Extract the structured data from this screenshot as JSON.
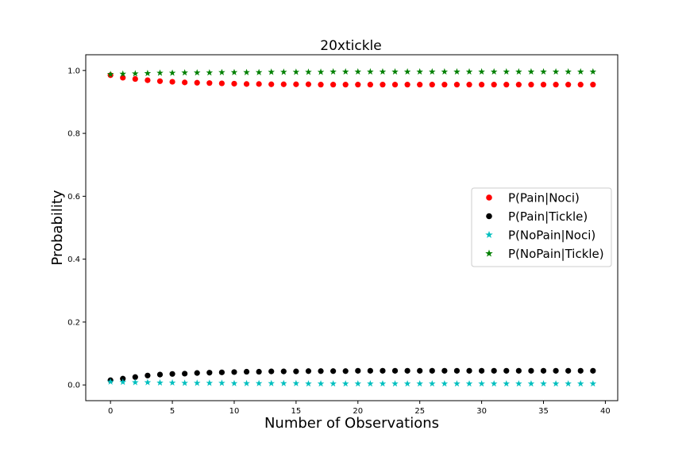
{
  "chart_data": {
    "type": "scatter",
    "title": "20xtickle",
    "xlabel": "Number of Observations",
    "ylabel": "Probability",
    "xlim": [
      -2,
      41
    ],
    "ylim": [
      -0.05,
      1.05
    ],
    "xticks": [
      0,
      5,
      10,
      15,
      20,
      25,
      30,
      35,
      40
    ],
    "yticks": [
      0.0,
      0.2,
      0.4,
      0.6,
      0.8,
      1.0
    ],
    "xtick_labels": [
      "0",
      "5",
      "10",
      "15",
      "20",
      "25",
      "30",
      "35",
      "40"
    ],
    "ytick_labels": [
      "0.0",
      "0.2",
      "0.4",
      "0.6",
      "0.8",
      "1.0"
    ],
    "legend_position": "center-right",
    "grid": false,
    "x": [
      0,
      1,
      2,
      3,
      4,
      5,
      6,
      7,
      8,
      9,
      10,
      11,
      12,
      13,
      14,
      15,
      16,
      17,
      18,
      19,
      20,
      21,
      22,
      23,
      24,
      25,
      26,
      27,
      28,
      29,
      30,
      31,
      32,
      33,
      34,
      35,
      36,
      37,
      38,
      39
    ],
    "series": [
      {
        "name": "P(Pain|Noci)",
        "marker": "circle",
        "color": "#ff0000",
        "values": [
          0.985,
          0.977,
          0.973,
          0.969,
          0.966,
          0.964,
          0.962,
          0.961,
          0.96,
          0.959,
          0.958,
          0.957,
          0.957,
          0.956,
          0.956,
          0.956,
          0.956,
          0.955,
          0.955,
          0.955,
          0.955,
          0.955,
          0.955,
          0.955,
          0.955,
          0.955,
          0.955,
          0.955,
          0.955,
          0.955,
          0.955,
          0.955,
          0.955,
          0.955,
          0.955,
          0.955,
          0.955,
          0.955,
          0.955,
          0.955
        ]
      },
      {
        "name": "P(Pain|Tickle)",
        "marker": "circle",
        "color": "#000000",
        "values": [
          0.015,
          0.02,
          0.025,
          0.03,
          0.033,
          0.035,
          0.036,
          0.038,
          0.039,
          0.04,
          0.041,
          0.042,
          0.042,
          0.043,
          0.043,
          0.043,
          0.044,
          0.044,
          0.044,
          0.044,
          0.045,
          0.045,
          0.045,
          0.045,
          0.045,
          0.045,
          0.045,
          0.045,
          0.045,
          0.045,
          0.045,
          0.045,
          0.045,
          0.045,
          0.045,
          0.045,
          0.045,
          0.045,
          0.045,
          0.045
        ]
      },
      {
        "name": "P(NoPain|Noci)",
        "marker": "star",
        "color": "#00bfbf",
        "values": [
          0.01,
          0.009,
          0.008,
          0.008,
          0.007,
          0.007,
          0.006,
          0.006,
          0.006,
          0.006,
          0.005,
          0.005,
          0.005,
          0.005,
          0.005,
          0.005,
          0.004,
          0.004,
          0.004,
          0.004,
          0.004,
          0.004,
          0.004,
          0.004,
          0.004,
          0.004,
          0.004,
          0.004,
          0.004,
          0.004,
          0.004,
          0.004,
          0.004,
          0.004,
          0.004,
          0.004,
          0.004,
          0.004,
          0.004,
          0.004
        ]
      },
      {
        "name": "P(NoPain|Tickle)",
        "marker": "star",
        "color": "#008000",
        "values": [
          0.988,
          0.989,
          0.99,
          0.991,
          0.992,
          0.992,
          0.993,
          0.993,
          0.993,
          0.994,
          0.994,
          0.994,
          0.994,
          0.995,
          0.995,
          0.995,
          0.995,
          0.995,
          0.996,
          0.996,
          0.996,
          0.996,
          0.996,
          0.996,
          0.996,
          0.996,
          0.996,
          0.996,
          0.996,
          0.996,
          0.996,
          0.996,
          0.996,
          0.996,
          0.996,
          0.996,
          0.996,
          0.996,
          0.996,
          0.996
        ]
      }
    ]
  }
}
